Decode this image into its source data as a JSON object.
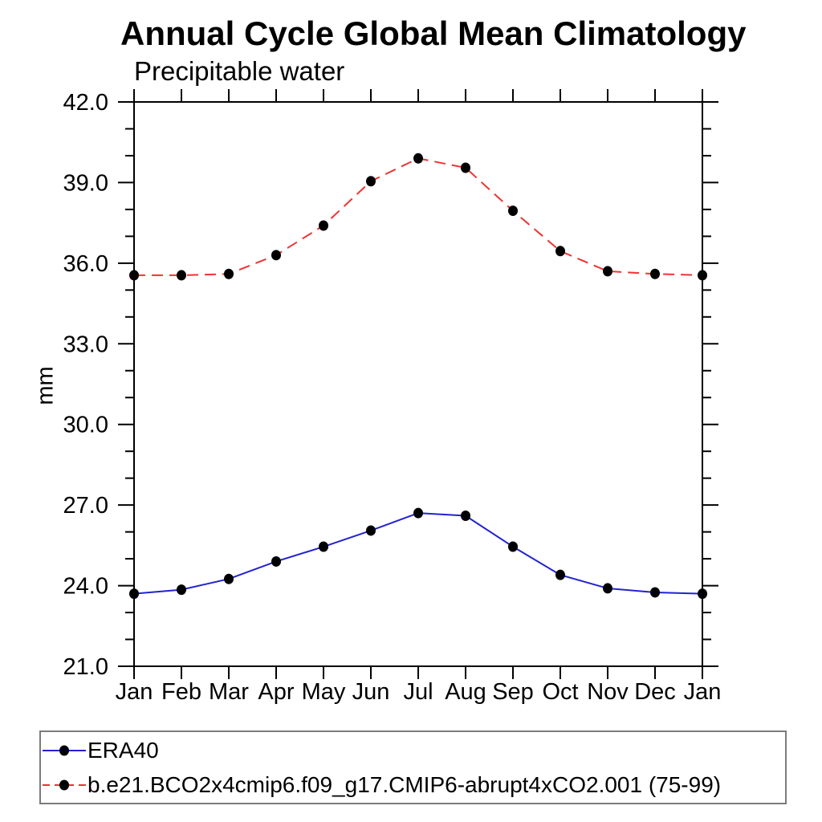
{
  "chart": {
    "title": "Annual Cycle Global Mean Climatology",
    "subtitle": "Precipitable water",
    "ylabel": "mm"
  },
  "chart_data": {
    "type": "line",
    "x": [
      "Jan",
      "Feb",
      "Mar",
      "Apr",
      "May",
      "Jun",
      "Jul",
      "Aug",
      "Sep",
      "Oct",
      "Nov",
      "Dec",
      "Jan"
    ],
    "xlabel": "",
    "ylabel": "mm",
    "ylim": [
      21.0,
      42.0
    ],
    "ytick_major_values": [
      21,
      24,
      27,
      30,
      33,
      36,
      39,
      42
    ],
    "ytick_labels": [
      "21.0",
      "24.0",
      "27.0",
      "30.0",
      "33.0",
      "36.0",
      "39.0",
      "42.0"
    ],
    "ytick_minor_step": 1.0,
    "grid": false,
    "legend_position": "bottom-left-box",
    "axis_color": "#000000",
    "marker_color": "#000000",
    "series": [
      {
        "name": "ERA40",
        "color": "#2222d2",
        "line_style": "solid",
        "marker": "filled-circle",
        "values": [
          23.7,
          23.85,
          24.25,
          24.9,
          25.45,
          26.05,
          26.7,
          26.6,
          25.45,
          24.4,
          23.9,
          23.75,
          23.7
        ]
      },
      {
        "name": "b.e21.BCO2x4cmip6.f09_g17.CMIP6-abrupt4xCO2.001 (75-99)",
        "color": "#ee3333",
        "line_style": "dashed",
        "marker": "filled-circle",
        "values": [
          35.55,
          35.55,
          35.6,
          36.3,
          37.4,
          39.05,
          39.9,
          39.55,
          37.95,
          36.45,
          35.7,
          35.6,
          35.55
        ]
      }
    ]
  }
}
